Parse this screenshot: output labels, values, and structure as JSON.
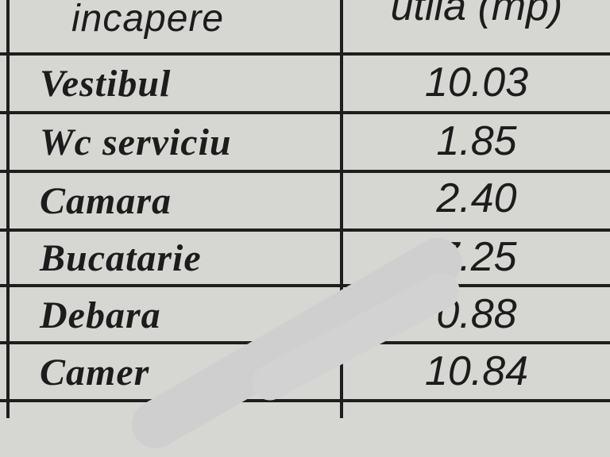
{
  "table": {
    "headers": [
      "incapere",
      "utila (mp)"
    ],
    "rows": [
      {
        "room": "Vestibul",
        "area": "10.03"
      },
      {
        "room": "Wc serviciu",
        "area": "1.85"
      },
      {
        "room": "Camara",
        "area": "2.40"
      },
      {
        "room": "Bucatarie",
        "area": "7.25"
      },
      {
        "room": "Debara",
        "area": "0.88"
      },
      {
        "room": "Camer",
        "area": "10.84"
      }
    ]
  }
}
